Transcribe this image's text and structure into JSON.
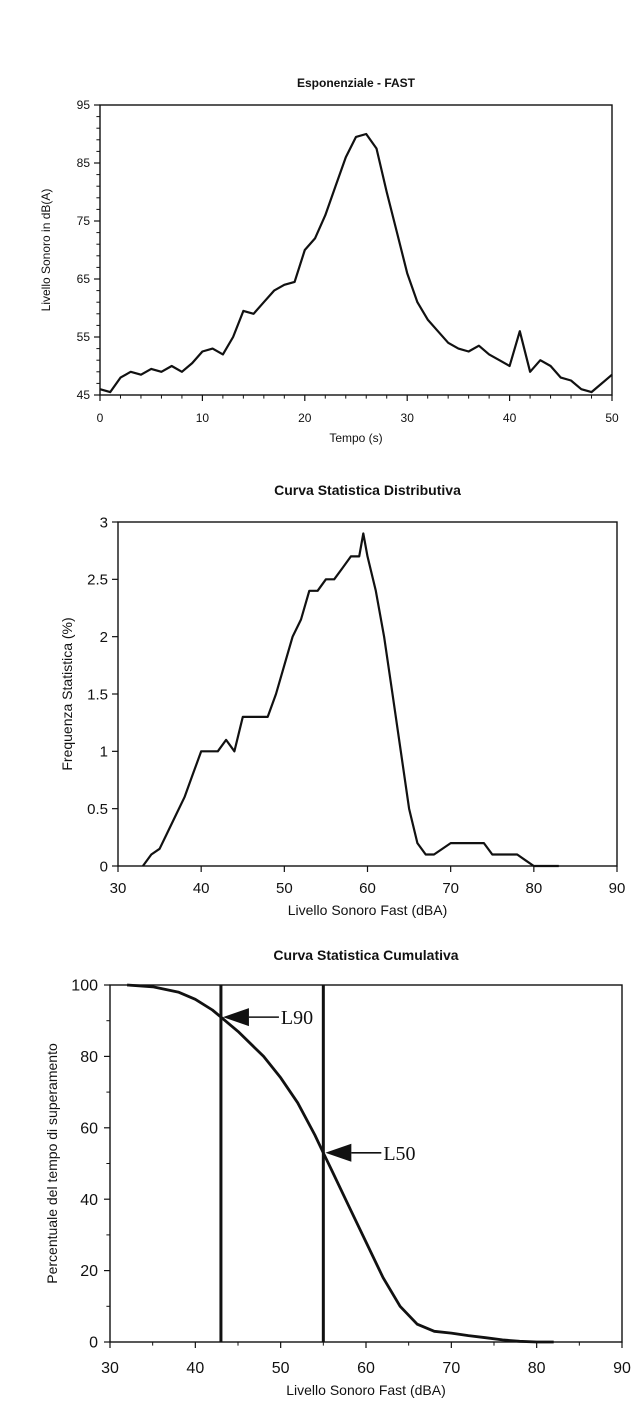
{
  "chart_data": [
    {
      "type": "line",
      "title": "Esponenziale - FAST",
      "xlabel": "Tempo (s)",
      "ylabel": "Livello Sonoro in dB(A)",
      "xlim": [
        0,
        50
      ],
      "ylim": [
        45,
        95
      ],
      "xticks": [
        0,
        10,
        20,
        30,
        40,
        50
      ],
      "yticks": [
        45,
        55,
        65,
        75,
        85,
        95
      ],
      "grid": false,
      "series": [
        {
          "x": [
            0,
            1,
            2,
            3,
            4,
            5,
            6,
            7,
            8,
            9,
            10,
            11,
            12,
            13,
            14,
            15,
            16,
            17,
            18,
            19,
            20,
            21,
            22,
            23,
            24,
            25,
            26,
            27,
            28,
            29,
            30,
            31,
            32,
            33,
            34,
            35,
            36,
            37,
            38,
            39,
            40,
            41,
            42,
            43,
            44,
            45,
            46,
            47,
            48,
            49,
            50
          ],
          "y": [
            46,
            45.5,
            48,
            49,
            48.5,
            49.5,
            49,
            50,
            49,
            50.5,
            52.5,
            53,
            52,
            55,
            59.5,
            59,
            61,
            63,
            64,
            64.5,
            70,
            72,
            76,
            81,
            86,
            89.5,
            90,
            87.5,
            80,
            73,
            66,
            61,
            58,
            56,
            54,
            53,
            52.5,
            53.5,
            52,
            51,
            50,
            56,
            49,
            51,
            50,
            48,
            47.5,
            46,
            45.5,
            47,
            48.5
          ]
        }
      ]
    },
    {
      "type": "line",
      "title": "Curva Statistica Distributiva",
      "xlabel": "Livello Sonoro Fast (dBA)",
      "ylabel": "Frequenza Statistica (%)",
      "xlim": [
        30,
        90
      ],
      "ylim": [
        0,
        3
      ],
      "xticks": [
        30,
        40,
        50,
        60,
        70,
        80,
        90
      ],
      "yticks": [
        0,
        0.5,
        1,
        1.5,
        2,
        2.5,
        3
      ],
      "ytick_labels": [
        "0",
        "0.5",
        "1",
        "1.5",
        "2",
        "2.5",
        "3"
      ],
      "grid": false,
      "series": [
        {
          "x": [
            33,
            34,
            35,
            36,
            37,
            38,
            39,
            40,
            41,
            42,
            43,
            44,
            45,
            46,
            47,
            48,
            49,
            50,
            51,
            52,
            53,
            54,
            55,
            56,
            57,
            58,
            59,
            59.5,
            60,
            61,
            62,
            63,
            64,
            65,
            66,
            67,
            68,
            70,
            72,
            74,
            75,
            78,
            79,
            80,
            83
          ],
          "y": [
            0,
            0.1,
            0.15,
            0.3,
            0.45,
            0.6,
            0.8,
            1.0,
            1.0,
            1.0,
            1.1,
            1.0,
            1.3,
            1.3,
            1.3,
            1.3,
            1.5,
            1.75,
            2.0,
            2.15,
            2.4,
            2.4,
            2.5,
            2.5,
            2.6,
            2.7,
            2.7,
            2.9,
            2.7,
            2.4,
            2.0,
            1.5,
            1.0,
            0.5,
            0.2,
            0.1,
            0.1,
            0.2,
            0.2,
            0.2,
            0.1,
            0.1,
            0.05,
            0,
            0
          ]
        }
      ]
    },
    {
      "type": "line",
      "title": "Curva Statistica Cumulativa",
      "xlabel": "Livello Sonoro Fast (dBA)",
      "ylabel": "Percentuale del tempo di superamento",
      "xlim": [
        30,
        90
      ],
      "ylim": [
        0,
        100
      ],
      "xticks": [
        30,
        40,
        50,
        60,
        70,
        80,
        90
      ],
      "yticks": [
        0,
        20,
        40,
        60,
        80,
        100
      ],
      "grid": false,
      "series": [
        {
          "x": [
            32,
            35,
            38,
            40,
            42,
            43,
            45,
            48,
            50,
            52,
            54,
            55,
            56,
            58,
            60,
            62,
            64,
            66,
            68,
            70,
            72,
            74,
            76,
            78,
            80,
            82
          ],
          "y": [
            100,
            99.5,
            98,
            96,
            93,
            91,
            87,
            80,
            74,
            67,
            58,
            53,
            48,
            38,
            28,
            18,
            10,
            5,
            3,
            2.5,
            1.8,
            1.2,
            0.6,
            0.2,
            0,
            0
          ]
        }
      ],
      "vlines": [
        43,
        55
      ],
      "annotations": [
        {
          "text": "L90",
          "x": 43,
          "y": 91
        },
        {
          "text": "L50",
          "x": 55,
          "y": 53
        }
      ]
    }
  ]
}
